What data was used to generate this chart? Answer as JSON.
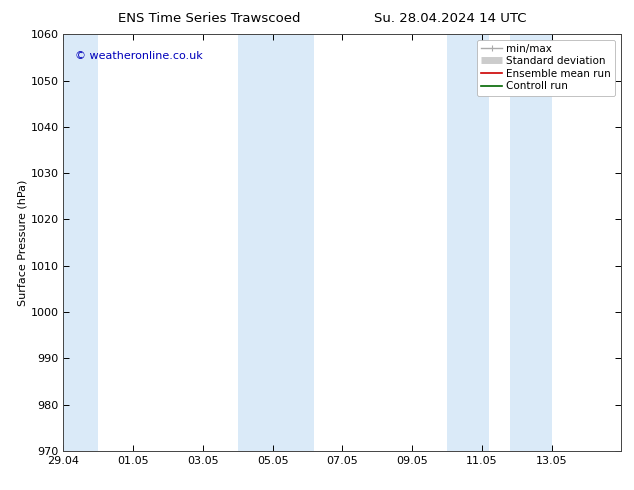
{
  "title_left": "ENS Time Series Trawscoed",
  "title_right": "Su. 28.04.2024 14 UTC",
  "ylabel": "Surface Pressure (hPa)",
  "ylim": [
    970,
    1060
  ],
  "yticks": [
    970,
    980,
    990,
    1000,
    1010,
    1020,
    1030,
    1040,
    1050,
    1060
  ],
  "xlim": [
    0,
    16
  ],
  "xtick_positions": [
    0,
    2,
    4,
    6,
    8,
    10,
    12,
    14
  ],
  "xtick_labels": [
    "29.04",
    "01.05",
    "03.05",
    "05.05",
    "07.05",
    "09.05",
    "11.05",
    "13.05"
  ],
  "shaded_bands": [
    {
      "x_start": -0.1,
      "x_end": 1.0
    },
    {
      "x_start": 5.0,
      "x_end": 7.2
    },
    {
      "x_start": 11.0,
      "x_end": 12.2
    },
    {
      "x_start": 12.8,
      "x_end": 14.0
    }
  ],
  "band_color": "#daeaf8",
  "copyright_text": "© weatheronline.co.uk",
  "copyright_color": "#0000bb",
  "legend_entries": [
    {
      "label": "min/max",
      "color": "#aaaaaa",
      "type": "line_with_caps"
    },
    {
      "label": "Standard deviation",
      "color": "#cccccc",
      "type": "thick_line"
    },
    {
      "label": "Ensemble mean run",
      "color": "#cc0000",
      "type": "line"
    },
    {
      "label": "Controll run",
      "color": "#006600",
      "type": "line"
    }
  ],
  "background_color": "#ffffff",
  "title_fontsize": 9.5,
  "axis_label_fontsize": 8,
  "tick_fontsize": 8,
  "legend_fontsize": 7.5,
  "copyright_fontsize": 8
}
